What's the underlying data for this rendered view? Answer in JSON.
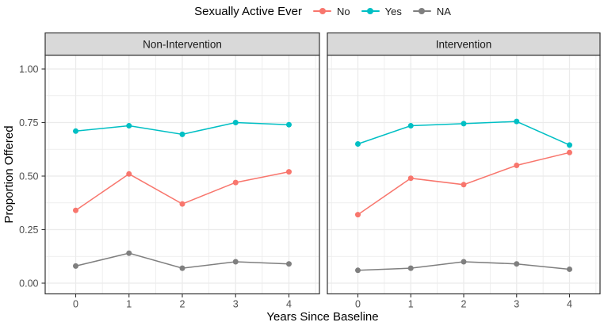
{
  "legend": {
    "title": "Sexually Active Ever",
    "items": [
      {
        "label": "No",
        "color": "#F8766D"
      },
      {
        "label": "Yes",
        "color": "#00BFC4"
      },
      {
        "label": "NA",
        "color": "#7F7F7F"
      }
    ]
  },
  "axes": {
    "x_title": "Years Since Baseline",
    "y_title": "Proportion Offered",
    "x_tick_labels": [
      "0",
      "1",
      "2",
      "3",
      "4"
    ],
    "y_tick_labels": [
      "0.00",
      "0.25",
      "0.50",
      "0.75",
      "1.00"
    ],
    "y_tick_values": [
      0,
      0.25,
      0.5,
      0.75,
      1.0
    ],
    "y_minor_values": [
      0.125,
      0.375,
      0.625,
      0.875
    ],
    "x_minor_values": [
      -0.5,
      0.5,
      1.5,
      2.5,
      3.5,
      4.5
    ]
  },
  "colors": {
    "strip_bg": "#D9D9D9",
    "strip_text": "#1A1A1A",
    "panel_border": "#333333",
    "grid": "#EBEBEB",
    "tick_mark": "#333333",
    "tick_text": "#4D4D4D",
    "axis_title": "#000000",
    "background": "#FFFFFF"
  },
  "chart_data": {
    "type": "line",
    "title": "",
    "xlabel": "Years Since Baseline",
    "ylabel": "Proportion Offered",
    "x": [
      0,
      1,
      2,
      3,
      4
    ],
    "ylim": [
      0,
      1.05
    ],
    "grid": true,
    "legend_position": "top",
    "legend_title": "Sexually Active Ever",
    "facets": [
      {
        "title": "Non-Intervention",
        "series": [
          {
            "name": "No",
            "color": "#F8766D",
            "values": [
              0.34,
              0.51,
              0.37,
              0.47,
              0.52
            ]
          },
          {
            "name": "Yes",
            "color": "#00BFC4",
            "values": [
              0.71,
              0.735,
              0.695,
              0.75,
              0.74
            ]
          },
          {
            "name": "NA",
            "color": "#7F7F7F",
            "values": [
              0.08,
              0.14,
              0.07,
              0.1,
              0.09
            ]
          }
        ]
      },
      {
        "title": "Intervention",
        "series": [
          {
            "name": "No",
            "color": "#F8766D",
            "values": [
              0.32,
              0.49,
              0.46,
              0.55,
              0.61
            ]
          },
          {
            "name": "Yes",
            "color": "#00BFC4",
            "values": [
              0.65,
              0.735,
              0.745,
              0.755,
              0.645
            ]
          },
          {
            "name": "NA",
            "color": "#7F7F7F",
            "values": [
              0.06,
              0.07,
              0.1,
              0.09,
              0.065
            ]
          }
        ]
      }
    ]
  }
}
